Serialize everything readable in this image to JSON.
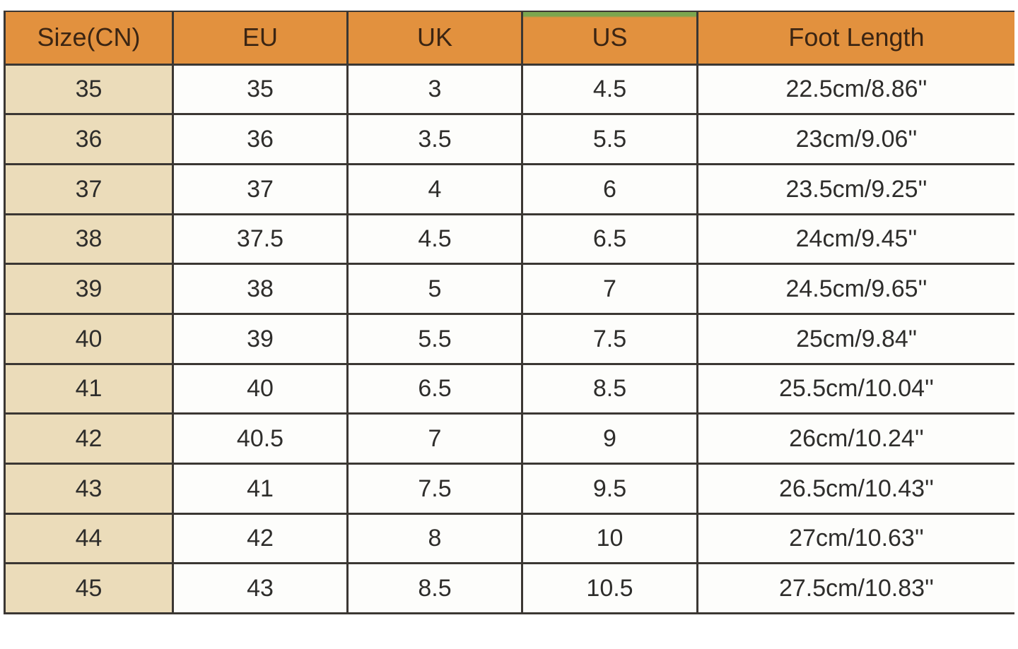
{
  "colors": {
    "page_bg": "#ffffff",
    "header_bg": "#e2913e",
    "header_text": "#3b2513",
    "cn_column_bg": "#ebdcba",
    "cell_bg": "#fdfdfb",
    "border": "#3b3733",
    "accent_green_strip": "#7ca64f",
    "body_text": "#2e2d2b"
  },
  "table": {
    "columns": [
      "Size(CN)",
      "EU",
      "UK",
      "US",
      "Foot Length"
    ],
    "rows": [
      [
        "35",
        "35",
        "3",
        "4.5",
        "22.5cm/8.86''"
      ],
      [
        "36",
        "36",
        "3.5",
        "5.5",
        "23cm/9.06''"
      ],
      [
        "37",
        "37",
        "4",
        "6",
        "23.5cm/9.25''"
      ],
      [
        "38",
        "37.5",
        "4.5",
        "6.5",
        "24cm/9.45''"
      ],
      [
        "39",
        "38",
        "5",
        "7",
        "24.5cm/9.65''"
      ],
      [
        "40",
        "39",
        "5.5",
        "7.5",
        "25cm/9.84\""
      ],
      [
        "41",
        "40",
        "6.5",
        "8.5",
        "25.5cm/10.04''"
      ],
      [
        "42",
        "40.5",
        "7",
        "9",
        "26cm/10.24''"
      ],
      [
        "43",
        "41",
        "7.5",
        "9.5",
        "26.5cm/10.43''"
      ],
      [
        "44",
        "42",
        "8",
        "10",
        "27cm/10.63''"
      ],
      [
        "45",
        "43",
        "8.5",
        "10.5",
        "27.5cm/10.83''"
      ]
    ]
  }
}
